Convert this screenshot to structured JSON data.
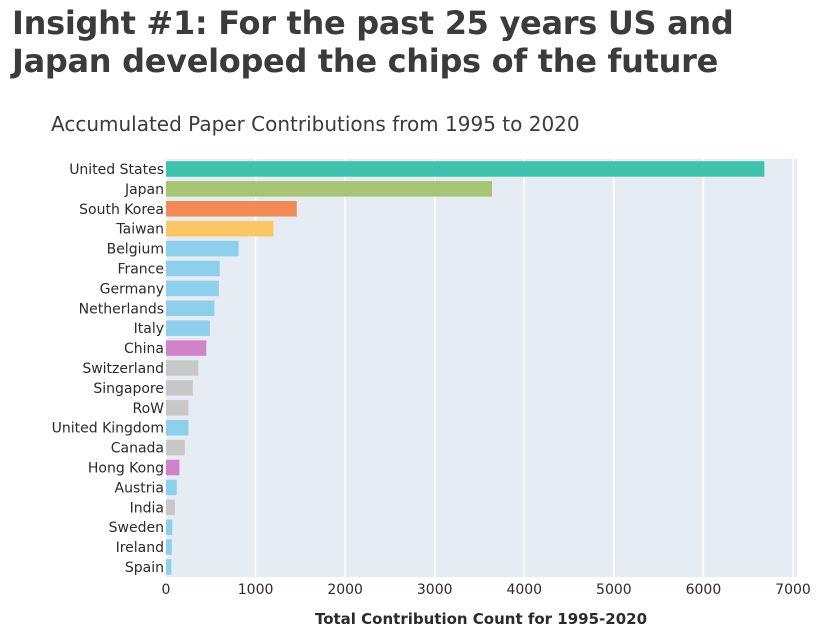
{
  "headline": "Insight #1: For the past 25 years US and Japan developed the chips of the future",
  "chart_data": {
    "type": "bar",
    "orientation": "horizontal",
    "title": "Accumulated Paper Contributions from 1995 to 2020",
    "xlabel": "Total Contribution Count for 1995-2020",
    "ylabel": "",
    "xlim": [
      0,
      7000
    ],
    "x_ticks": [
      "0",
      "1000",
      "2000",
      "3000",
      "4000",
      "5000",
      "6000",
      "7000"
    ],
    "grid": true,
    "background_color": "#e6ecf3",
    "categories": [
      "United States",
      "Japan",
      "South Korea",
      "Taiwan",
      "Belgium",
      "France",
      "Germany",
      "Netherlands",
      "Italy",
      "China",
      "Switzerland",
      "Singapore",
      "RoW",
      "United Kingdom",
      "Canada",
      "Hong Kong",
      "Austria",
      "India",
      "Sweden",
      "Ireland",
      "Spain"
    ],
    "values": [
      6680,
      3640,
      1460,
      1200,
      810,
      600,
      590,
      540,
      490,
      450,
      360,
      300,
      250,
      250,
      210,
      150,
      120,
      100,
      70,
      65,
      60
    ],
    "colors": [
      "#40c1ae",
      "#a5c574",
      "#f18a55",
      "#fdc664",
      "#8ecfeb",
      "#8ecfeb",
      "#8ecfeb",
      "#8ecfeb",
      "#8ecfeb",
      "#d183c9",
      "#c8c8c8",
      "#c8c8c8",
      "#c8c8c8",
      "#8ecfeb",
      "#c8c8c8",
      "#d183c9",
      "#8ecfeb",
      "#c8c8c8",
      "#8ecfeb",
      "#8ecfeb",
      "#8ecfeb"
    ]
  }
}
